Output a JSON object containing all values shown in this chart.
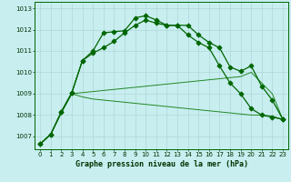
{
  "title": "Graphe pression niveau de la mer (hPa)",
  "background_color": "#c8eef0",
  "grid_color": "#b0d8d8",
  "ylim": [
    1006.4,
    1013.3
  ],
  "yticks": [
    1007,
    1008,
    1009,
    1010,
    1011,
    1012,
    1013
  ],
  "xlim": [
    -0.5,
    23.5
  ],
  "xticks": [
    0,
    1,
    2,
    3,
    4,
    5,
    6,
    7,
    8,
    9,
    10,
    11,
    12,
    13,
    14,
    15,
    16,
    17,
    18,
    19,
    20,
    21,
    22,
    23
  ],
  "series_main1": [
    1006.65,
    1007.1,
    1008.15,
    1009.05,
    1010.55,
    1011.0,
    1011.85,
    1011.9,
    1011.95,
    1012.55,
    1012.65,
    1012.45,
    1012.2,
    1012.2,
    1012.2,
    1011.75,
    1011.4,
    1011.15,
    1010.25,
    1010.05,
    1010.3,
    1009.35,
    1008.7,
    1007.8
  ],
  "series_main2": [
    1006.65,
    1007.1,
    1008.15,
    1009.05,
    1010.55,
    1010.9,
    1011.15,
    1011.45,
    1011.85,
    1012.2,
    1012.45,
    1012.3,
    1012.2,
    1012.2,
    1011.75,
    1011.4,
    1011.15,
    1010.3,
    1009.5,
    1009.0,
    1008.3,
    1008.0,
    1007.9,
    1007.8
  ],
  "series_flat1": [
    1006.65,
    1007.1,
    1008.1,
    1009.0,
    1009.05,
    1009.1,
    1009.15,
    1009.2,
    1009.25,
    1009.3,
    1009.35,
    1009.4,
    1009.45,
    1009.5,
    1009.55,
    1009.6,
    1009.65,
    1009.7,
    1009.75,
    1009.8,
    1010.0,
    1009.5,
    1009.0,
    1007.8
  ],
  "series_flat2": [
    1006.65,
    1007.1,
    1008.1,
    1009.0,
    1008.85,
    1008.75,
    1008.7,
    1008.65,
    1008.6,
    1008.55,
    1008.5,
    1008.45,
    1008.4,
    1008.35,
    1008.3,
    1008.25,
    1008.2,
    1008.15,
    1008.1,
    1008.05,
    1008.0,
    1008.0,
    1007.95,
    1007.8
  ],
  "color_dark": "#006600",
  "color_mid": "#228822",
  "marker_style": "D",
  "title_fontsize": 6,
  "tick_fontsize": 5,
  "title_color": "#003300",
  "tick_color": "#003300"
}
